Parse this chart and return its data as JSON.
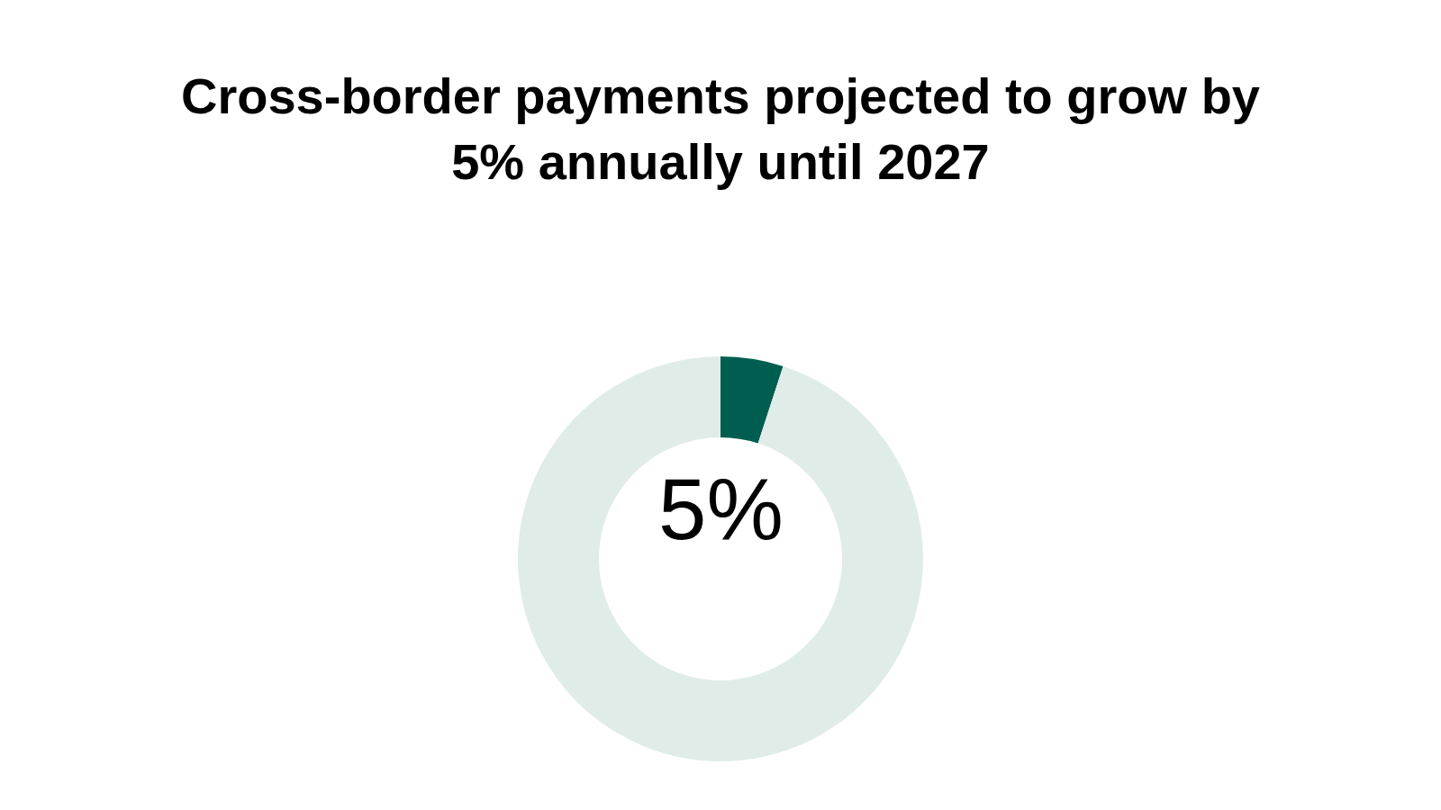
{
  "chart_data": {
    "type": "donut",
    "title": "Cross-border payments projected to grow by 5% annually until 2027",
    "categories": [
      null,
      null
    ],
    "values": [
      5,
      95
    ],
    "colors": [
      "#005e50",
      "#e0ece8"
    ],
    "annotations": [
      "5%"
    ],
    "legend": false
  }
}
